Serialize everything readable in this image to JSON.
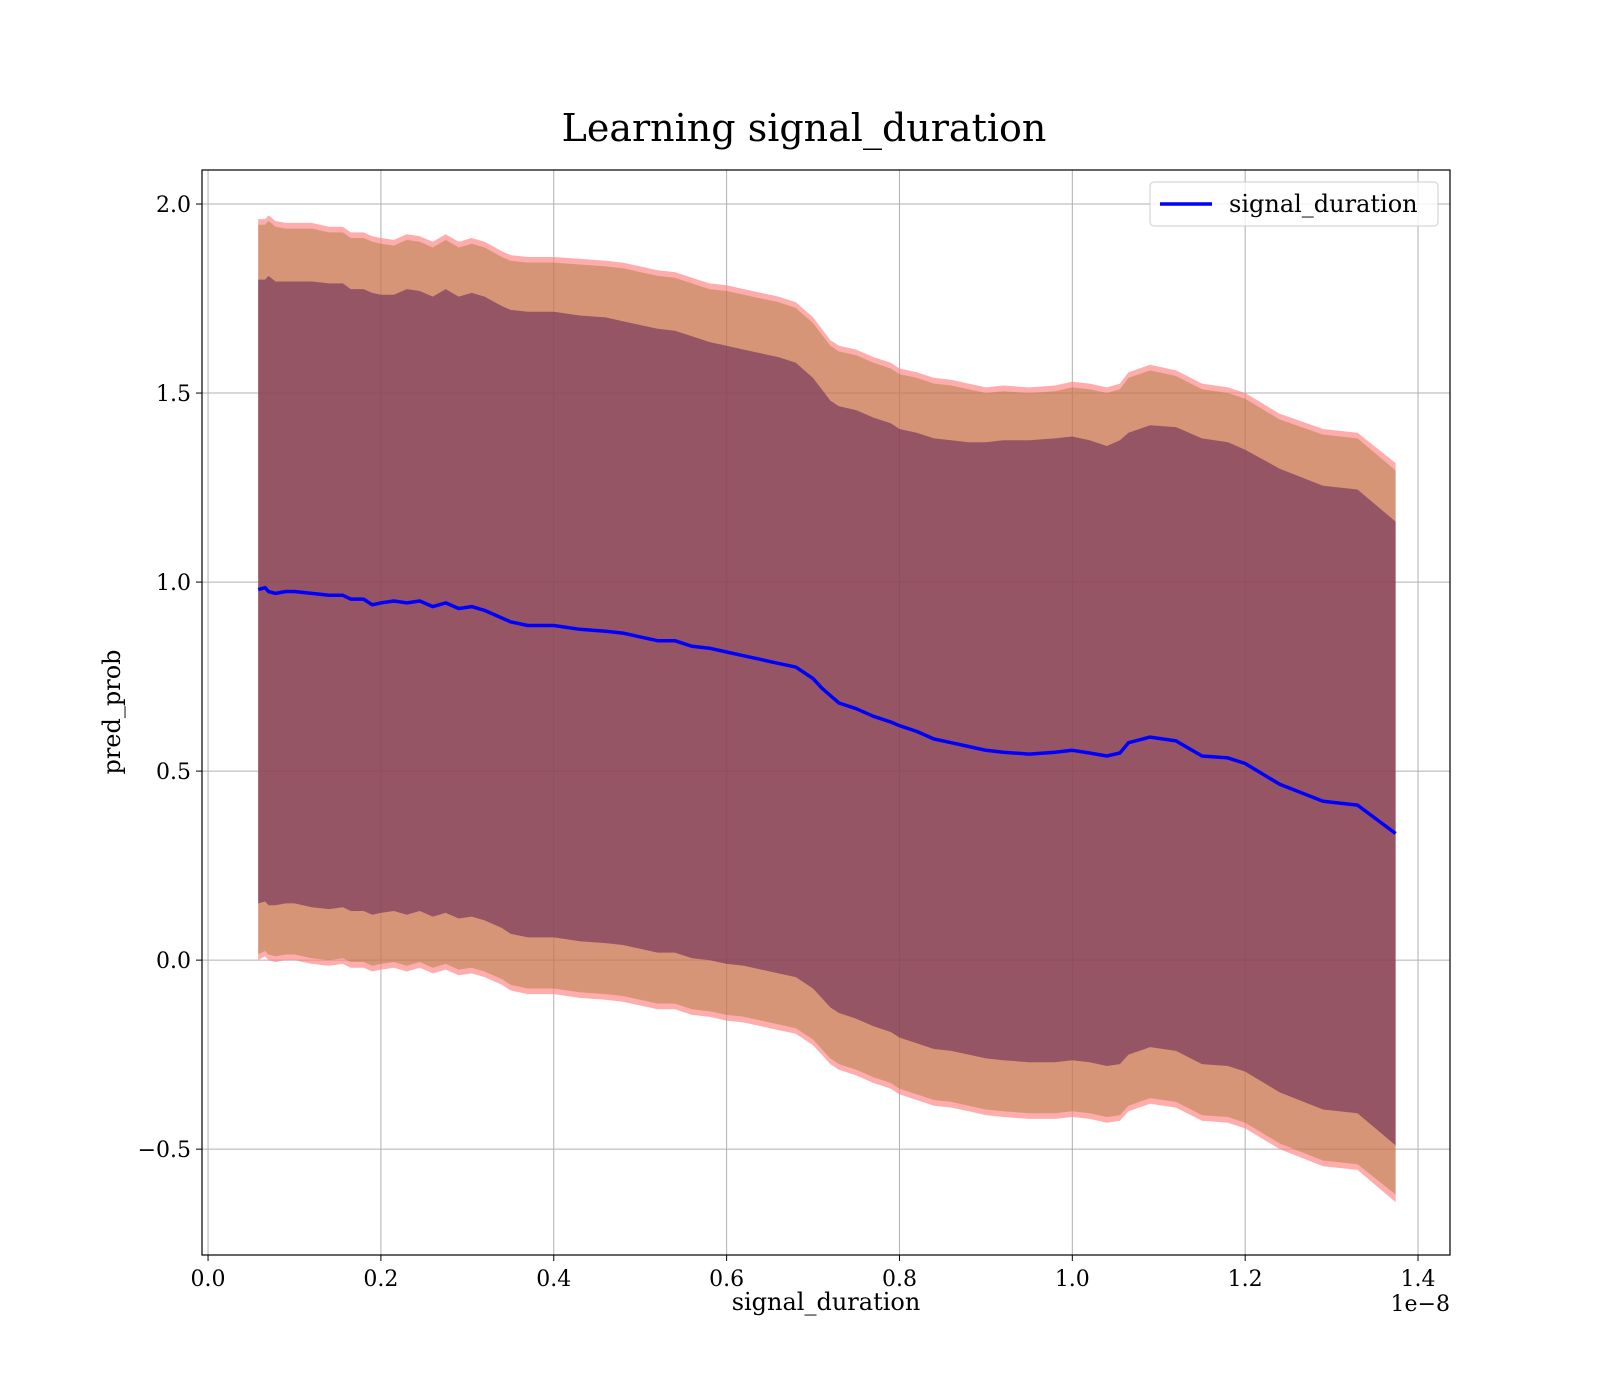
{
  "chart_data": {
    "type": "line",
    "title": "Learning signal_duration",
    "xlabel": "signal_duration",
    "ylabel": "pred_prob",
    "x_offset_text": "1e−8",
    "xlim": [
      -0.007,
      1.437
    ],
    "ylim": [
      -0.78,
      2.09
    ],
    "x_ticks": [
      0.0,
      0.2,
      0.4,
      0.6,
      0.8,
      1.0,
      1.2,
      1.4
    ],
    "x_tick_labels": [
      "0.0",
      "0.2",
      "0.4",
      "0.6",
      "0.8",
      "1.0",
      "1.2",
      "1.4"
    ],
    "y_ticks": [
      -0.5,
      0.0,
      0.5,
      1.0,
      1.5,
      2.0
    ],
    "y_tick_labels": [
      "−0.5",
      "0.0",
      "0.5",
      "1.0",
      "1.5",
      "2.0"
    ],
    "grid": true,
    "legend": {
      "position": "top-right",
      "entries": [
        "signal_duration"
      ]
    },
    "series": [
      {
        "name": "signal_duration",
        "color": "#0000ff",
        "x": [
          0.058,
          0.066,
          0.07,
          0.078,
          0.09,
          0.1,
          0.12,
          0.14,
          0.156,
          0.165,
          0.18,
          0.19,
          0.2,
          0.215,
          0.23,
          0.245,
          0.26,
          0.275,
          0.29,
          0.305,
          0.32,
          0.34,
          0.35,
          0.37,
          0.4,
          0.43,
          0.46,
          0.48,
          0.5,
          0.52,
          0.54,
          0.56,
          0.58,
          0.6,
          0.62,
          0.64,
          0.66,
          0.68,
          0.7,
          0.71,
          0.72,
          0.73,
          0.75,
          0.77,
          0.79,
          0.8,
          0.82,
          0.84,
          0.86,
          0.88,
          0.9,
          0.92,
          0.95,
          0.98,
          1.0,
          1.02,
          1.04,
          1.055,
          1.065,
          1.09,
          1.12,
          1.15,
          1.18,
          1.2,
          1.24,
          1.29,
          1.33,
          1.374
        ],
        "y": [
          0.98,
          0.985,
          0.975,
          0.97,
          0.975,
          0.975,
          0.97,
          0.965,
          0.965,
          0.955,
          0.955,
          0.94,
          0.945,
          0.95,
          0.945,
          0.95,
          0.935,
          0.945,
          0.93,
          0.935,
          0.925,
          0.905,
          0.895,
          0.885,
          0.885,
          0.875,
          0.87,
          0.865,
          0.855,
          0.845,
          0.845,
          0.83,
          0.825,
          0.815,
          0.805,
          0.795,
          0.785,
          0.775,
          0.745,
          0.72,
          0.7,
          0.68,
          0.665,
          0.645,
          0.63,
          0.62,
          0.605,
          0.585,
          0.575,
          0.565,
          0.555,
          0.55,
          0.545,
          0.55,
          0.555,
          0.548,
          0.54,
          0.548,
          0.575,
          0.59,
          0.58,
          0.54,
          0.535,
          0.52,
          0.465,
          0.42,
          0.41,
          0.335
        ]
      }
    ],
    "bands": [
      {
        "name": "outer",
        "color": "#ff8080",
        "opacity": 0.65,
        "upper": [
          1.96,
          1.96,
          1.97,
          1.955,
          1.95,
          1.95,
          1.95,
          1.94,
          1.94,
          1.925,
          1.925,
          1.915,
          1.91,
          1.905,
          1.92,
          1.915,
          1.9,
          1.92,
          1.9,
          1.91,
          1.9,
          1.875,
          1.865,
          1.86,
          1.86,
          1.855,
          1.85,
          1.845,
          1.835,
          1.825,
          1.82,
          1.805,
          1.79,
          1.785,
          1.775,
          1.765,
          1.755,
          1.74,
          1.7,
          1.67,
          1.64,
          1.625,
          1.615,
          1.595,
          1.58,
          1.565,
          1.555,
          1.54,
          1.535,
          1.525,
          1.515,
          1.52,
          1.515,
          1.52,
          1.53,
          1.525,
          1.515,
          1.525,
          1.555,
          1.575,
          1.56,
          1.525,
          1.515,
          1.5,
          1.445,
          1.405,
          1.395,
          1.315
        ],
        "lower": [
          0.0,
          0.01,
          0.0,
          -0.005,
          0.0,
          0.0,
          -0.01,
          -0.015,
          -0.01,
          -0.02,
          -0.02,
          -0.03,
          -0.025,
          -0.02,
          -0.03,
          -0.02,
          -0.035,
          -0.025,
          -0.04,
          -0.035,
          -0.045,
          -0.065,
          -0.08,
          -0.09,
          -0.09,
          -0.1,
          -0.105,
          -0.11,
          -0.12,
          -0.13,
          -0.13,
          -0.145,
          -0.15,
          -0.16,
          -0.165,
          -0.175,
          -0.185,
          -0.195,
          -0.225,
          -0.25,
          -0.275,
          -0.29,
          -0.305,
          -0.325,
          -0.34,
          -0.355,
          -0.37,
          -0.385,
          -0.39,
          -0.4,
          -0.41,
          -0.415,
          -0.42,
          -0.42,
          -0.415,
          -0.42,
          -0.43,
          -0.425,
          -0.4,
          -0.38,
          -0.39,
          -0.425,
          -0.43,
          -0.445,
          -0.5,
          -0.545,
          -0.555,
          -0.64
        ]
      },
      {
        "name": "middle",
        "color": "#8b6914",
        "opacity": 0.35,
        "upper": [
          1.945,
          1.945,
          1.955,
          1.94,
          1.935,
          1.935,
          1.935,
          1.925,
          1.925,
          1.91,
          1.91,
          1.9,
          1.895,
          1.89,
          1.905,
          1.9,
          1.885,
          1.905,
          1.885,
          1.895,
          1.885,
          1.86,
          1.85,
          1.845,
          1.845,
          1.84,
          1.835,
          1.83,
          1.82,
          1.81,
          1.805,
          1.79,
          1.775,
          1.77,
          1.76,
          1.75,
          1.74,
          1.725,
          1.685,
          1.655,
          1.625,
          1.61,
          1.6,
          1.58,
          1.565,
          1.55,
          1.54,
          1.525,
          1.52,
          1.51,
          1.5,
          1.505,
          1.5,
          1.505,
          1.515,
          1.51,
          1.5,
          1.51,
          1.54,
          1.56,
          1.545,
          1.51,
          1.5,
          1.485,
          1.43,
          1.39,
          1.38,
          1.295
        ],
        "lower": [
          0.015,
          0.025,
          0.015,
          0.01,
          0.015,
          0.015,
          0.005,
          0.0,
          0.005,
          -0.005,
          -0.005,
          -0.015,
          -0.01,
          -0.005,
          -0.015,
          -0.005,
          -0.02,
          -0.01,
          -0.025,
          -0.02,
          -0.03,
          -0.05,
          -0.065,
          -0.075,
          -0.075,
          -0.085,
          -0.09,
          -0.095,
          -0.105,
          -0.115,
          -0.115,
          -0.13,
          -0.135,
          -0.145,
          -0.15,
          -0.16,
          -0.17,
          -0.18,
          -0.21,
          -0.235,
          -0.26,
          -0.275,
          -0.29,
          -0.31,
          -0.325,
          -0.34,
          -0.355,
          -0.37,
          -0.375,
          -0.385,
          -0.395,
          -0.4,
          -0.405,
          -0.405,
          -0.4,
          -0.405,
          -0.415,
          -0.41,
          -0.385,
          -0.365,
          -0.375,
          -0.41,
          -0.415,
          -0.43,
          -0.485,
          -0.53,
          -0.54,
          -0.62
        ]
      },
      {
        "name": "inner",
        "color": "#6b2b5a",
        "opacity": 0.6,
        "upper": [
          1.8,
          1.8,
          1.81,
          1.795,
          1.795,
          1.795,
          1.795,
          1.79,
          1.79,
          1.775,
          1.775,
          1.765,
          1.76,
          1.76,
          1.775,
          1.77,
          1.755,
          1.775,
          1.755,
          1.765,
          1.755,
          1.73,
          1.72,
          1.715,
          1.715,
          1.705,
          1.7,
          1.69,
          1.68,
          1.67,
          1.665,
          1.65,
          1.635,
          1.625,
          1.615,
          1.605,
          1.595,
          1.58,
          1.54,
          1.51,
          1.48,
          1.465,
          1.455,
          1.435,
          1.42,
          1.405,
          1.395,
          1.38,
          1.375,
          1.37,
          1.37,
          1.375,
          1.375,
          1.38,
          1.385,
          1.375,
          1.36,
          1.375,
          1.395,
          1.415,
          1.41,
          1.38,
          1.37,
          1.35,
          1.3,
          1.255,
          1.245,
          1.16
        ],
        "lower": [
          0.15,
          0.155,
          0.145,
          0.145,
          0.15,
          0.15,
          0.14,
          0.135,
          0.14,
          0.13,
          0.13,
          0.12,
          0.125,
          0.13,
          0.12,
          0.13,
          0.115,
          0.125,
          0.11,
          0.115,
          0.105,
          0.085,
          0.07,
          0.06,
          0.06,
          0.05,
          0.045,
          0.04,
          0.03,
          0.02,
          0.02,
          0.005,
          0.0,
          -0.01,
          -0.015,
          -0.025,
          -0.035,
          -0.045,
          -0.075,
          -0.1,
          -0.125,
          -0.14,
          -0.155,
          -0.175,
          -0.19,
          -0.205,
          -0.22,
          -0.235,
          -0.24,
          -0.25,
          -0.26,
          -0.265,
          -0.27,
          -0.27,
          -0.265,
          -0.27,
          -0.28,
          -0.275,
          -0.25,
          -0.23,
          -0.24,
          -0.275,
          -0.28,
          -0.295,
          -0.35,
          -0.395,
          -0.405,
          -0.49
        ]
      }
    ]
  }
}
